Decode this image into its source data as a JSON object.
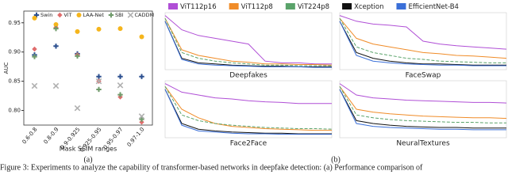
{
  "chart_data": [
    {
      "type": "scatter",
      "ylabel": "AUC",
      "xlabel": "Mask SSIM ranges",
      "sublabel": "(a)",
      "categories": [
        "0.6-0.8",
        "0.8-0.9",
        "0.9-0.925",
        "0.925-0.95",
        "0.95-0.97",
        "0.97-1.0"
      ],
      "ylim": [
        0.775,
        0.97
      ],
      "yticks": [
        {
          "value": 0.8,
          "label": "0.80"
        },
        {
          "value": 0.85,
          "label": "0.85"
        },
        {
          "value": 0.9,
          "label": "0.90"
        },
        {
          "value": 0.95,
          "label": "0.95"
        }
      ],
      "series": [
        {
          "name": "Swin",
          "color": "#2b4f8f",
          "marker": "plus",
          "values": [
            0.895,
            0.91,
            0.897,
            0.858,
            0.858,
            0.858
          ]
        },
        {
          "name": "ViT",
          "color": "#e06c6c",
          "marker": "diamond",
          "values": [
            0.905,
            0.942,
            0.895,
            0.85,
            0.823,
            0.78
          ]
        },
        {
          "name": "LAA-Net",
          "color": "#f5b51c",
          "marker": "circle",
          "values": [
            0.958,
            0.947,
            0.935,
            0.939,
            0.94,
            0.926
          ]
        },
        {
          "name": "SBI",
          "color": "#6f9a6a",
          "marker": "plus",
          "values": [
            0.892,
            0.94,
            0.893,
            0.836,
            0.827,
            0.785
          ]
        },
        {
          "name": "CADDM",
          "color": "#b0b0b0",
          "marker": "cross",
          "values": [
            0.842,
            0.842,
            0.804,
            0.85,
            0.843,
            0.79
          ]
        }
      ]
    },
    {
      "type": "line",
      "sublabel": "(b)",
      "x": [
        0,
        1,
        2,
        3,
        4,
        5,
        6,
        7,
        8,
        9,
        10
      ],
      "xlim": [
        0,
        10
      ],
      "ylim": [
        0,
        1
      ],
      "series": [
        {
          "name": "ViT112p16",
          "color": "#b04fd6",
          "dash": "none"
        },
        {
          "name": "ViT112p8",
          "color": "#f08c28",
          "dash": "none"
        },
        {
          "name": "ViT224p8",
          "color": "#5aa36a",
          "dash": "4 2"
        },
        {
          "name": "Xception",
          "color": "#111111",
          "dash": "none"
        },
        {
          "name": "EfficientNet-B4",
          "color": "#3a6fd8",
          "dash": "none"
        }
      ],
      "panels": [
        {
          "title": "Deepfakes",
          "values": [
            [
              0.95,
              0.7,
              0.6,
              0.55,
              0.5,
              0.45,
              0.15,
              0.12,
              0.12,
              0.1,
              0.1
            ],
            [
              0.9,
              0.35,
              0.25,
              0.2,
              0.15,
              0.13,
              0.1,
              0.1,
              0.09,
              0.09,
              0.08
            ],
            [
              0.9,
              0.3,
              0.2,
              0.15,
              0.12,
              0.1,
              0.08,
              0.08,
              0.07,
              0.07,
              0.07
            ],
            [
              0.85,
              0.2,
              0.12,
              0.1,
              0.08,
              0.07,
              0.06,
              0.06,
              0.05,
              0.05,
              0.05
            ],
            [
              0.85,
              0.18,
              0.1,
              0.08,
              0.07,
              0.06,
              0.05,
              0.05,
              0.05,
              0.04,
              0.04
            ]
          ]
        },
        {
          "title": "FaceSwap",
          "values": [
            [
              0.95,
              0.85,
              0.8,
              0.78,
              0.75,
              0.5,
              0.45,
              0.42,
              0.4,
              0.38,
              0.36
            ],
            [
              0.9,
              0.55,
              0.45,
              0.4,
              0.35,
              0.3,
              0.28,
              0.25,
              0.24,
              0.22,
              0.2
            ],
            [
              0.9,
              0.4,
              0.3,
              0.25,
              0.2,
              0.18,
              0.15,
              0.14,
              0.13,
              0.12,
              0.12
            ],
            [
              0.85,
              0.3,
              0.2,
              0.15,
              0.12,
              0.1,
              0.1,
              0.09,
              0.08,
              0.08,
              0.08
            ],
            [
              0.85,
              0.25,
              0.15,
              0.12,
              0.1,
              0.09,
              0.08,
              0.08,
              0.07,
              0.07,
              0.07
            ]
          ]
        },
        {
          "title": "Face2Face",
          "values": [
            [
              0.95,
              0.8,
              0.75,
              0.7,
              0.68,
              0.65,
              0.63,
              0.62,
              0.6,
              0.6,
              0.6
            ],
            [
              0.9,
              0.5,
              0.35,
              0.25,
              0.2,
              0.18,
              0.16,
              0.15,
              0.14,
              0.13,
              0.13
            ],
            [
              0.9,
              0.4,
              0.3,
              0.25,
              0.22,
              0.2,
              0.18,
              0.17,
              0.16,
              0.16,
              0.15
            ],
            [
              0.85,
              0.25,
              0.15,
              0.12,
              0.1,
              0.09,
              0.08,
              0.08,
              0.07,
              0.07,
              0.07
            ],
            [
              0.85,
              0.22,
              0.12,
              0.1,
              0.08,
              0.07,
              0.07,
              0.06,
              0.06,
              0.06,
              0.06
            ]
          ]
        },
        {
          "title": "NeuralTextures",
          "values": [
            [
              0.95,
              0.75,
              0.7,
              0.68,
              0.66,
              0.65,
              0.64,
              0.63,
              0.62,
              0.62,
              0.61
            ],
            [
              0.9,
              0.5,
              0.45,
              0.42,
              0.4,
              0.38,
              0.37,
              0.36,
              0.35,
              0.35,
              0.34
            ],
            [
              0.9,
              0.4,
              0.35,
              0.32,
              0.3,
              0.29,
              0.28,
              0.27,
              0.27,
              0.26,
              0.26
            ],
            [
              0.85,
              0.3,
              0.25,
              0.22,
              0.2,
              0.19,
              0.18,
              0.18,
              0.17,
              0.17,
              0.17
            ],
            [
              0.85,
              0.25,
              0.2,
              0.18,
              0.17,
              0.16,
              0.15,
              0.15,
              0.14,
              0.14,
              0.14
            ]
          ]
        }
      ]
    }
  ],
  "caption": "Figure 3: Experiments to analyze the capability of transformer-based networks in deepfake detection: (a) Performance comparison of"
}
